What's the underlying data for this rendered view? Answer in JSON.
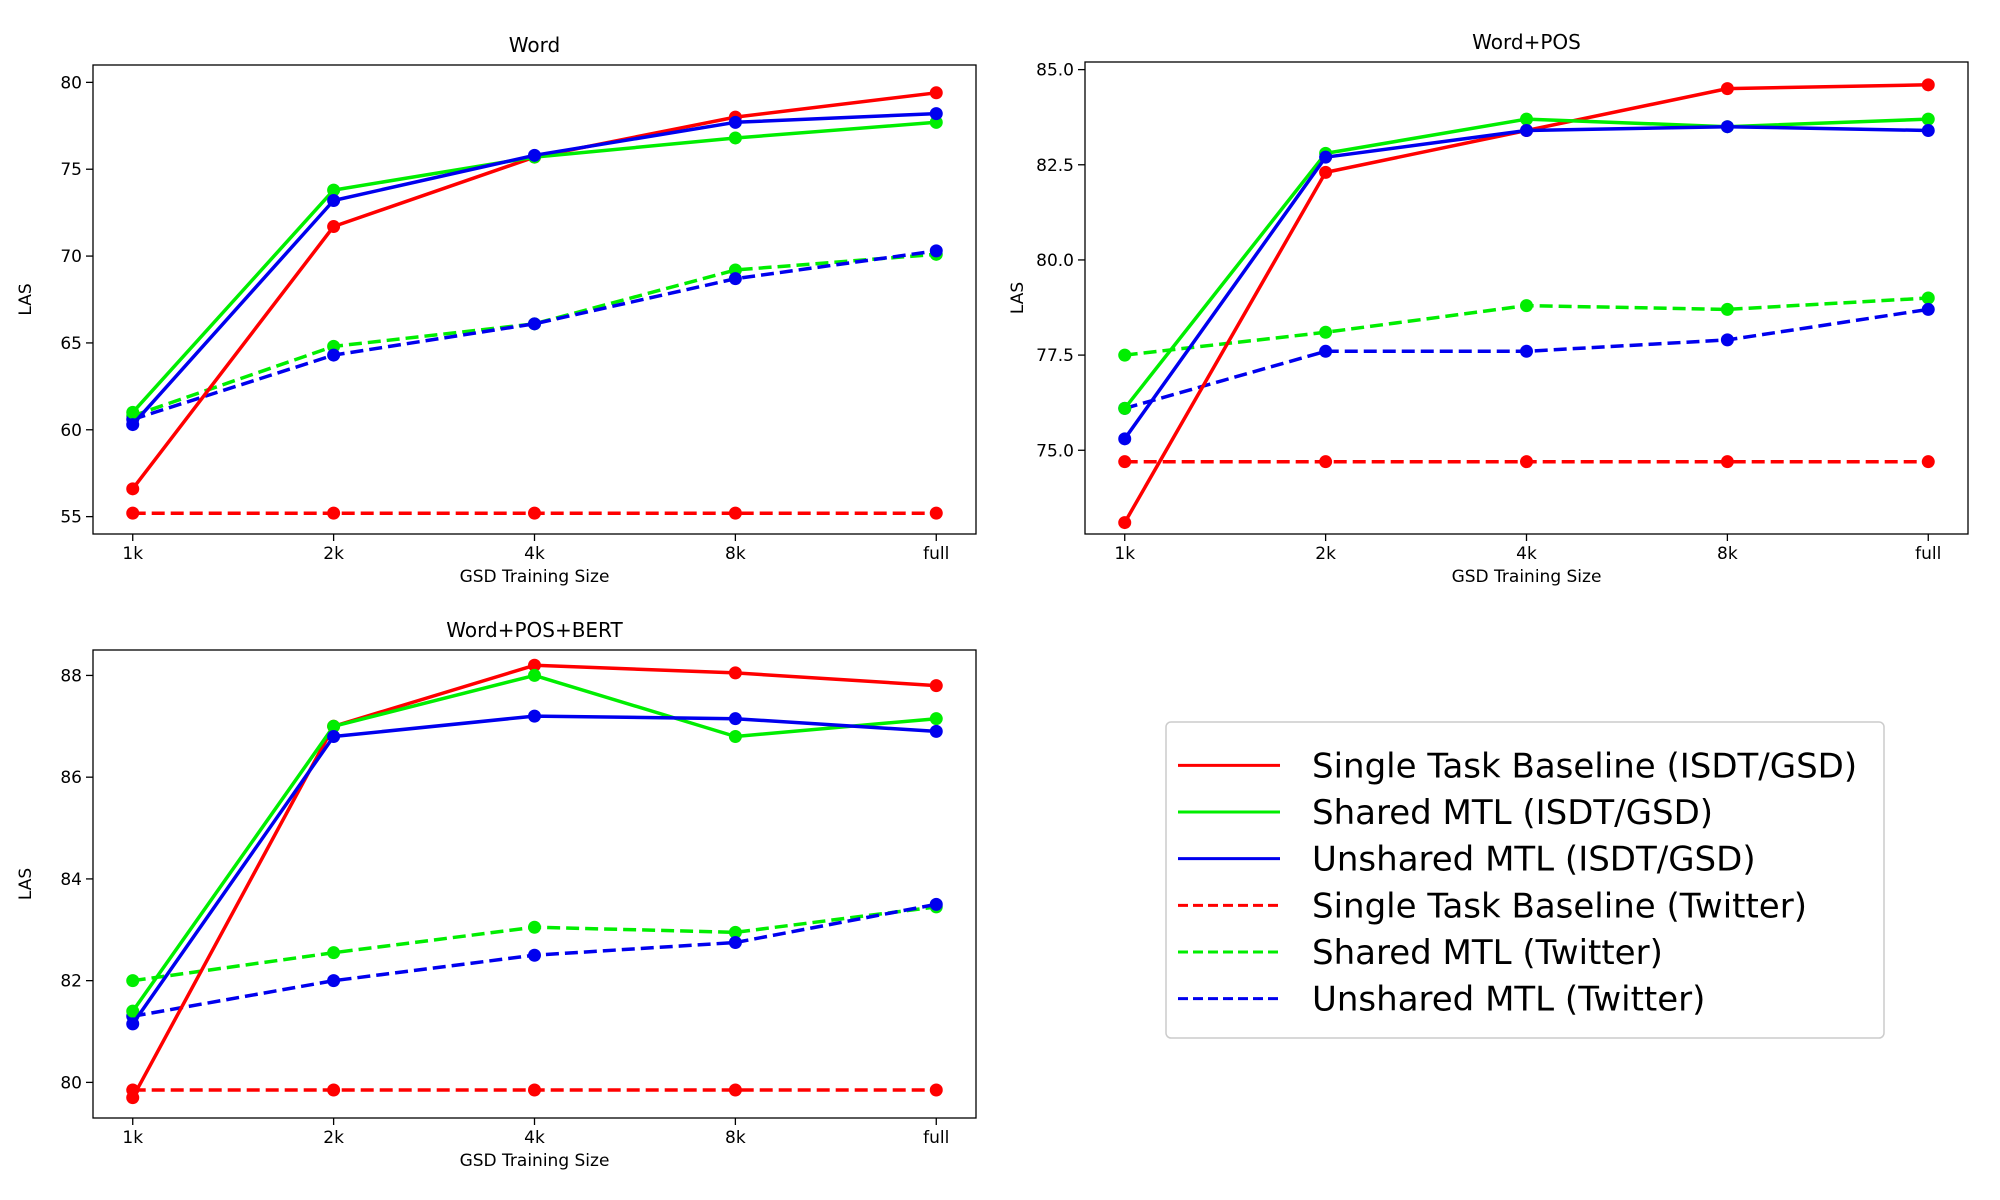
{
  "chart_data": [
    {
      "type": "line",
      "title": "Word",
      "xlabel": "GSD Training Size",
      "ylabel": "LAS",
      "categories": [
        "1k",
        "2k",
        "4k",
        "8k",
        "full"
      ],
      "ylim": [
        54,
        81
      ],
      "yticks": [
        55,
        60,
        65,
        70,
        75,
        80
      ],
      "ytick_labels": [
        "55",
        "60",
        "65",
        "70",
        "75",
        "80"
      ],
      "series": [
        {
          "name": "Single Task Baseline (ISDT/GSD)",
          "color": "#ff0000",
          "dash": "solid",
          "values": [
            56.6,
            71.7,
            75.7,
            78.0,
            79.4
          ]
        },
        {
          "name": "Shared MTL (ISDT/GSD)",
          "color": "#00ee00",
          "dash": "solid",
          "values": [
            61.0,
            73.8,
            75.7,
            76.8,
            77.7
          ]
        },
        {
          "name": "Unshared MTL (ISDT/GSD)",
          "color": "#0000ee",
          "dash": "solid",
          "values": [
            60.3,
            73.2,
            75.8,
            77.7,
            78.2
          ]
        },
        {
          "name": "Single Task Baseline (Twitter)",
          "color": "#ff0000",
          "dash": "dashed",
          "values": [
            55.2,
            55.2,
            55.2,
            55.2,
            55.2
          ]
        },
        {
          "name": "Shared MTL (Twitter)",
          "color": "#00ee00",
          "dash": "dashed",
          "values": [
            60.8,
            64.8,
            66.1,
            69.2,
            70.1
          ]
        },
        {
          "name": "Unshared MTL (Twitter)",
          "color": "#0000ee",
          "dash": "dashed",
          "values": [
            60.6,
            64.3,
            66.1,
            68.7,
            70.3
          ]
        }
      ]
    },
    {
      "type": "line",
      "title": "Word+POS",
      "xlabel": "GSD Training Size",
      "ylabel": "LAS",
      "categories": [
        "1k",
        "2k",
        "4k",
        "8k",
        "full"
      ],
      "ylim": [
        72.8,
        85.2
      ],
      "yticks": [
        75.0,
        77.5,
        80.0,
        82.5,
        85.0
      ],
      "ytick_labels": [
        "75.0",
        "77.5",
        "80.0",
        "82.5",
        "85.0"
      ],
      "series": [
        {
          "name": "Single Task Baseline (ISDT/GSD)",
          "color": "#ff0000",
          "dash": "solid",
          "values": [
            73.1,
            82.3,
            83.4,
            84.5,
            84.6
          ]
        },
        {
          "name": "Shared MTL (ISDT/GSD)",
          "color": "#00ee00",
          "dash": "solid",
          "values": [
            76.1,
            82.8,
            83.7,
            83.5,
            83.7
          ]
        },
        {
          "name": "Unshared MTL (ISDT/GSD)",
          "color": "#0000ee",
          "dash": "solid",
          "values": [
            75.3,
            82.7,
            83.4,
            83.5,
            83.4
          ]
        },
        {
          "name": "Single Task Baseline (Twitter)",
          "color": "#ff0000",
          "dash": "dashed",
          "values": [
            74.7,
            74.7,
            74.7,
            74.7,
            74.7
          ]
        },
        {
          "name": "Shared MTL (Twitter)",
          "color": "#00ee00",
          "dash": "dashed",
          "values": [
            77.5,
            78.1,
            78.8,
            78.7,
            79.0
          ]
        },
        {
          "name": "Unshared MTL (Twitter)",
          "color": "#0000ee",
          "dash": "dashed",
          "values": [
            76.1,
            77.6,
            77.6,
            77.9,
            78.7
          ]
        }
      ]
    },
    {
      "type": "line",
      "title": "Word+POS+BERT",
      "xlabel": "GSD Training Size",
      "ylabel": "LAS",
      "categories": [
        "1k",
        "2k",
        "4k",
        "8k",
        "full"
      ],
      "ylim": [
        79.3,
        88.5
      ],
      "yticks": [
        80,
        82,
        84,
        86,
        88
      ],
      "ytick_labels": [
        "80",
        "82",
        "84",
        "86",
        "88"
      ],
      "series": [
        {
          "name": "Single Task Baseline (ISDT/GSD)",
          "color": "#ff0000",
          "dash": "solid",
          "values": [
            79.7,
            87.0,
            88.2,
            88.05,
            87.8
          ]
        },
        {
          "name": "Shared MTL (ISDT/GSD)",
          "color": "#00ee00",
          "dash": "solid",
          "values": [
            81.4,
            87.0,
            88.0,
            86.8,
            87.15
          ]
        },
        {
          "name": "Unshared MTL (ISDT/GSD)",
          "color": "#0000ee",
          "dash": "solid",
          "values": [
            81.15,
            86.8,
            87.2,
            87.15,
            86.9
          ]
        },
        {
          "name": "Single Task Baseline (Twitter)",
          "color": "#ff0000",
          "dash": "dashed",
          "values": [
            79.85,
            79.85,
            79.85,
            79.85,
            79.85
          ]
        },
        {
          "name": "Shared MTL (Twitter)",
          "color": "#00ee00",
          "dash": "dashed",
          "values": [
            82.0,
            82.55,
            83.05,
            82.95,
            83.45
          ]
        },
        {
          "name": "Unshared MTL (Twitter)",
          "color": "#0000ee",
          "dash": "dashed",
          "values": [
            81.3,
            82.0,
            82.5,
            82.75,
            83.5
          ]
        }
      ]
    }
  ],
  "legend": {
    "entries": [
      {
        "label": "Single Task Baseline (ISDT/GSD)",
        "color": "#ff0000",
        "dash": "solid"
      },
      {
        "label": "Shared MTL (ISDT/GSD)",
        "color": "#00ee00",
        "dash": "solid"
      },
      {
        "label": "Unshared MTL (ISDT/GSD)",
        "color": "#0000ee",
        "dash": "solid"
      },
      {
        "label": "Single Task Baseline (Twitter)",
        "color": "#ff0000",
        "dash": "dashed"
      },
      {
        "label": "Shared MTL (Twitter)",
        "color": "#00ee00",
        "dash": "dashed"
      },
      {
        "label": "Unshared MTL (Twitter)",
        "color": "#0000ee",
        "dash": "dashed"
      }
    ]
  }
}
